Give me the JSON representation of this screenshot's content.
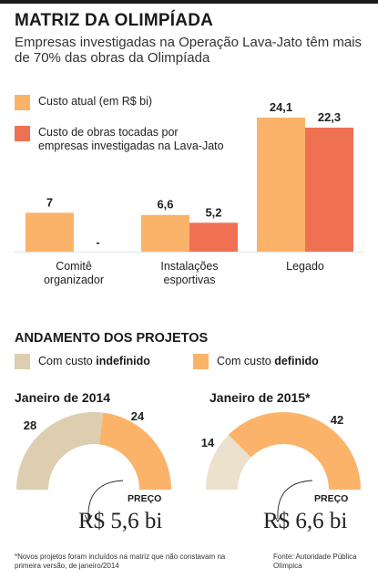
{
  "title": "MATRIZ DA OLIMPÍADA",
  "subtitle": "Empresas investigadas na Operação Lava-Jato têm mais de 70% das obras da Olimpíada",
  "colors": {
    "orange": "#fbb36a",
    "red": "#f07054",
    "beige": "#ddceb0",
    "beige_light": "#ebe1cc"
  },
  "chart_data": [
    {
      "type": "bar",
      "categories": [
        "Comitê organizador",
        "Instalações esportivas",
        "Legado"
      ],
      "series": [
        {
          "name": "Custo atual (em R$ bi)",
          "values": [
            7,
            6.6,
            24.1
          ],
          "labels": [
            "7",
            "6,6",
            "24,1"
          ]
        },
        {
          "name": "Custo de obras tocadas por empresas investigadas na Lava-Jato",
          "values": [
            null,
            5.2,
            22.3
          ],
          "labels": [
            "-",
            "5,2",
            "22,3"
          ]
        }
      ]
    },
    {
      "type": "pie",
      "title": "Janeiro de 2014",
      "series": [
        {
          "name": "Com custo indefinido",
          "value": 28
        },
        {
          "name": "Com custo definido",
          "value": 24
        }
      ],
      "price_label": "PREÇO",
      "price": "R$ 5,6 bi"
    },
    {
      "type": "pie",
      "title": "Janeiro de 2015*",
      "series": [
        {
          "name": "Com custo indefinido",
          "value": 14
        },
        {
          "name": "Com custo definido",
          "value": 42
        }
      ],
      "price_label": "PREÇO",
      "price": "R$ 6,6 bi"
    }
  ],
  "section2": {
    "title": "ANDAMENTO DOS PROJETOS",
    "legend": [
      {
        "prefix": "Com custo ",
        "bold": "indefinido"
      },
      {
        "prefix": "Com custo ",
        "bold": "definido"
      }
    ]
  },
  "footnote": "*Novos projetos foram incluídos na matriz que não constavam na primeira versão, de janeiro/2014",
  "source": "Fonte: Autoridade Pública Olímpica"
}
